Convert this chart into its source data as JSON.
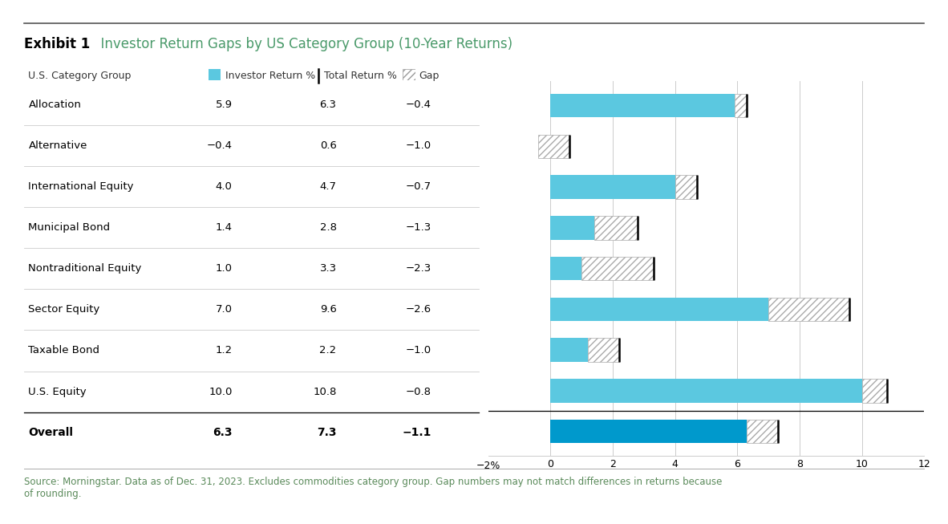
{
  "title_bold": "Exhibit 1",
  "title_rest": "  Investor Return Gaps by US Category Group (10-Year Returns)",
  "categories": [
    "Allocation",
    "Alternative",
    "International Equity",
    "Municipal Bond",
    "Nontraditional Equity",
    "Sector Equity",
    "Taxable Bond",
    "U.S. Equity",
    "Overall"
  ],
  "investor_returns": [
    5.9,
    -0.4,
    4.0,
    1.4,
    1.0,
    7.0,
    1.2,
    10.0,
    6.3
  ],
  "total_returns": [
    6.3,
    0.6,
    4.7,
    2.8,
    3.3,
    9.6,
    2.2,
    10.8,
    7.3
  ],
  "gaps": [
    -0.4,
    -1.0,
    -0.7,
    -1.3,
    -2.3,
    -2.6,
    -1.0,
    -0.8,
    -1.1
  ],
  "is_bold": [
    false,
    false,
    false,
    false,
    false,
    false,
    false,
    false,
    true
  ],
  "investor_color_normal": "#5BC8E0",
  "investor_color_overall": "#0099CC",
  "gap_hatch": "////",
  "xlim_left": -2,
  "xlim_right": 12,
  "xticks": [
    0,
    2,
    4,
    6,
    8,
    10,
    12
  ],
  "footer_text_black": "Source: ",
  "footer_source": "Morningstar",
  "footer_rest": ". Data as of Dec. 31, 2023. Excludes commodities category group. Gap numbers may not match differences in returns because of rounding.",
  "footer_color": "#5A8A5A",
  "background_color": "#FFFFFF",
  "inv_col_vals": [
    "5.9",
    "−0.4",
    "4.0",
    "1.4",
    "1.0",
    "7.0",
    "1.2",
    "10.0",
    "6.3"
  ],
  "tot_col_vals": [
    "6.3",
    "0.6",
    "4.7",
    "2.8",
    "3.3",
    "9.6",
    "2.2",
    "10.8",
    "7.3"
  ],
  "gap_col_vals": [
    "−0.4",
    "−1.0",
    "−0.7",
    "−1.3",
    "−2.3",
    "−2.6",
    "−1.0",
    "−0.8",
    "−1.1"
  ]
}
